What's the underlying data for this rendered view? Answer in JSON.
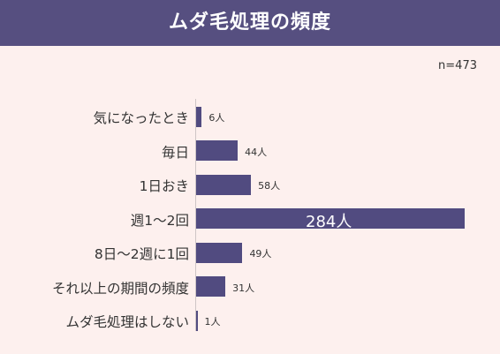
{
  "header": {
    "title": "ムダ毛処理の頻度"
  },
  "note": "n=473",
  "colors": {
    "bar": "#514b80",
    "header": "#564f80",
    "background": "#fdf0ee"
  },
  "chart_data": {
    "type": "bar",
    "orientation": "horizontal",
    "title": "ムダ毛処理の頻度",
    "categories": [
      "気になったとき",
      "毎日",
      "1日おき",
      "週1～2回",
      "8日～2週に1回",
      "それ以上の期間の頻度",
      "ムダ毛処理はしない"
    ],
    "values": [
      6,
      44,
      58,
      284,
      49,
      31,
      1
    ],
    "labels": [
      "6人",
      "44人",
      "58人",
      "284人",
      "49人",
      "31人",
      "1人"
    ],
    "unit": "人",
    "xlim": [
      0,
      284
    ]
  }
}
